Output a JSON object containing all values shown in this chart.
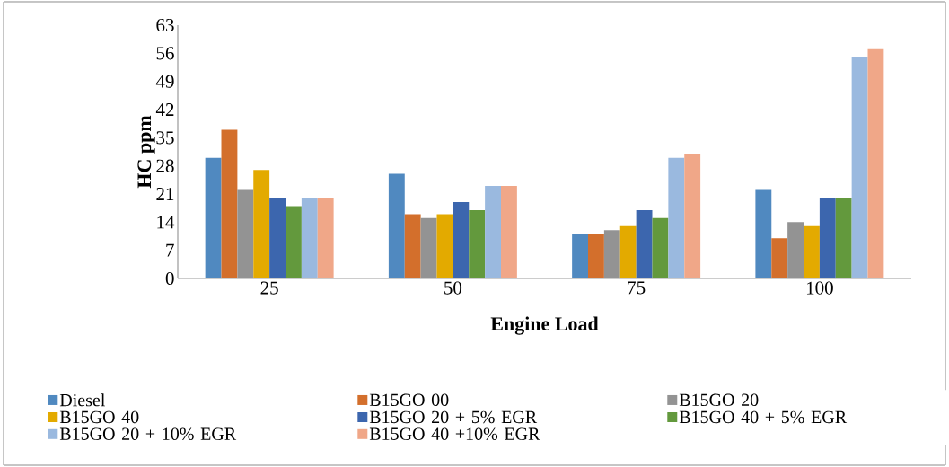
{
  "chart_data": {
    "type": "bar",
    "xlabel": "Engine Load",
    "ylabel": "HC ppm",
    "categories": [
      "25",
      "50",
      "75",
      "100"
    ],
    "series": [
      {
        "name": "Diesel",
        "color": "#5089c0",
        "values": [
          30,
          26,
          11,
          22
        ]
      },
      {
        "name": "B15GO 00",
        "color": "#d36f2c",
        "values": [
          37,
          16,
          11,
          10
        ]
      },
      {
        "name": "B15GO 20",
        "color": "#939393",
        "values": [
          22,
          15,
          12,
          14
        ]
      },
      {
        "name": "B15GO 40",
        "color": "#e3aa00",
        "values": [
          27,
          16,
          13,
          13
        ]
      },
      {
        "name": "B15GO 20 + 5% EGR",
        "color": "#3c66ae",
        "values": [
          20,
          19,
          17,
          20
        ]
      },
      {
        "name": "B15GO 40 + 5% EGR",
        "color": "#63993d",
        "values": [
          18,
          17,
          15,
          20
        ]
      },
      {
        "name": "B15GO 20 + 10% EGR",
        "color": "#9ab9df",
        "values": [
          20,
          23,
          30,
          55
        ]
      },
      {
        "name": "B15GO 40 +10% EGR",
        "color": "#f0a788",
        "values": [
          20,
          23,
          31,
          57
        ]
      }
    ],
    "ylim": [
      0,
      63
    ],
    "yticks": [
      0,
      7,
      14,
      21,
      28,
      35,
      42,
      49,
      56,
      63
    ],
    "grid": false,
    "legend": "bottom"
  }
}
